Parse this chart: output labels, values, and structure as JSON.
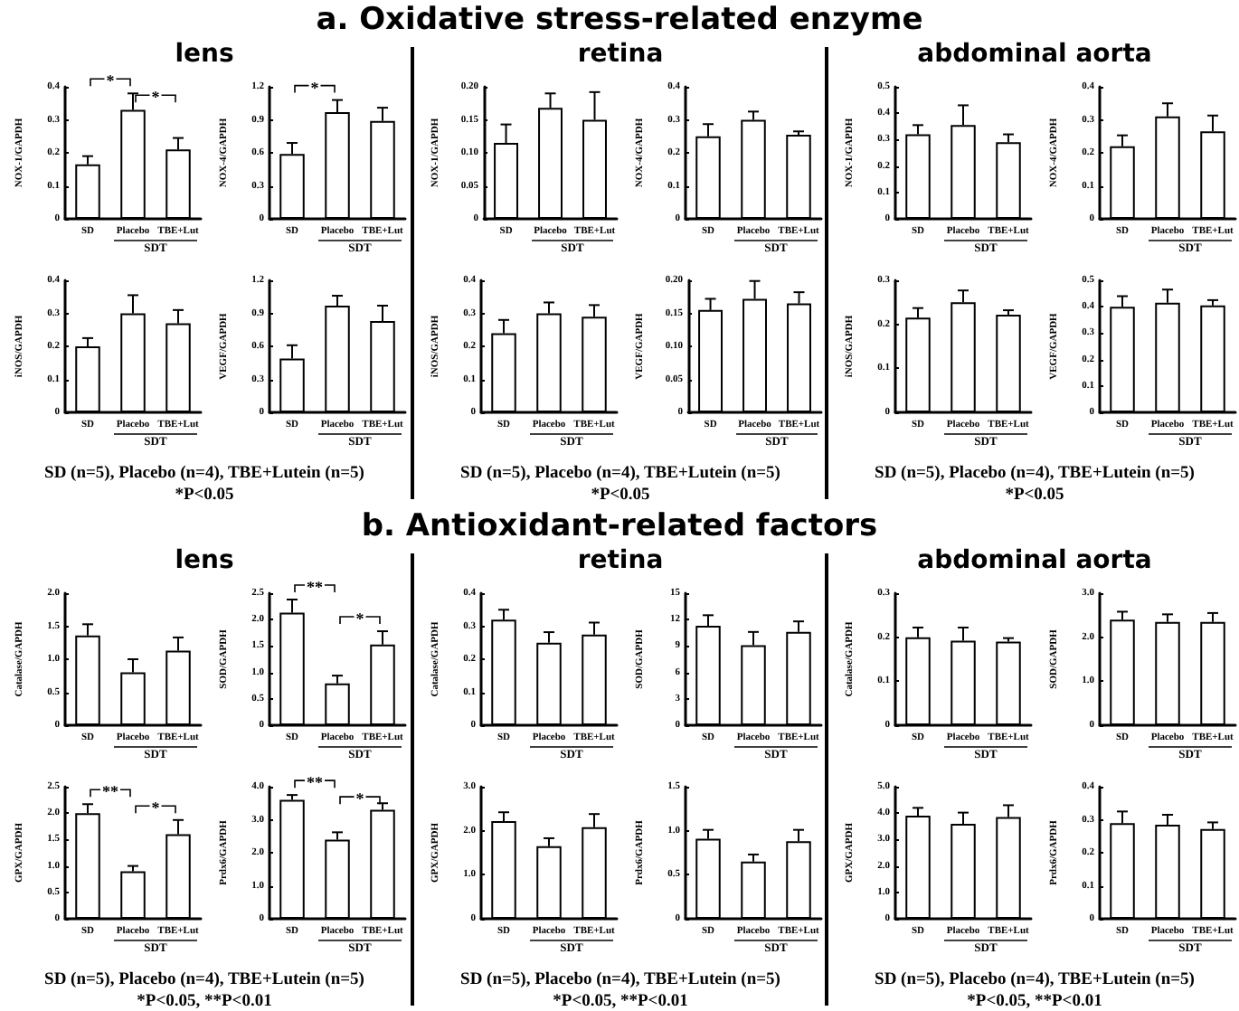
{
  "chart_data": [
    {
      "type": "other",
      "title": "a. Oxidative stress-related enzyme"
    },
    {
      "type": "other",
      "title": "lens",
      "annotations": [
        "SD (n=5), Placebo (n=4), TBE+Lutein (n=5)",
        "*P<0.05"
      ]
    },
    {
      "type": "bar",
      "ylabel": "NOX-1/GAPDH",
      "xlabel": "SDT",
      "categories": [
        "SD",
        "Placebo",
        "TBE+Lut"
      ],
      "values": [
        0.165,
        0.33,
        0.21
      ],
      "errors": [
        [
          0.165,
          0.19
        ],
        [
          0.33,
          0.38
        ],
        [
          0.21,
          0.245
        ]
      ],
      "color": "#ffffff",
      "ylim": [
        0,
        0.4
      ],
      "yticks": [
        0,
        0.1,
        0.2,
        0.3,
        0.4
      ],
      "annotations": [
        "*",
        "*"
      ]
    },
    {
      "type": "bar",
      "ylabel": "NOX-4/GAPDH",
      "xlabel": "SDT",
      "categories": [
        "SD",
        "Placebo",
        "TBE+Lut"
      ],
      "values": [
        0.59,
        0.97,
        0.89
      ],
      "errors": [
        [
          0.59,
          0.69
        ],
        [
          0.97,
          1.08
        ],
        [
          0.89,
          1.01
        ]
      ],
      "color": "#ffffff",
      "ylim": [
        0,
        1.2
      ],
      "yticks": [
        0,
        0.3,
        0.6,
        0.9,
        1.2
      ],
      "annotations": [
        "*"
      ]
    },
    {
      "type": "bar",
      "ylabel": "iNOS/GAPDH",
      "xlabel": "SDT",
      "categories": [
        "SD",
        "Placebo",
        "TBE+Lut"
      ],
      "values": [
        0.2,
        0.3,
        0.27
      ],
      "errors": [
        [
          0.2,
          0.225
        ],
        [
          0.3,
          0.355
        ],
        [
          0.27,
          0.31
        ]
      ],
      "color": "#ffffff",
      "ylim": [
        0,
        0.4
      ],
      "yticks": [
        0,
        0.1,
        0.2,
        0.3,
        0.4
      ]
    },
    {
      "type": "bar",
      "ylabel": "VEGF/GAPDH",
      "xlabel": "SDT",
      "categories": [
        "SD",
        "Placebo",
        "TBE+Lut"
      ],
      "values": [
        0.49,
        0.97,
        0.83
      ],
      "errors": [
        [
          0.49,
          0.61
        ],
        [
          0.97,
          1.06
        ],
        [
          0.83,
          0.97
        ]
      ],
      "color": "#ffffff",
      "ylim": [
        0,
        1.2
      ],
      "yticks": [
        0,
        0.3,
        0.6,
        0.9,
        1.2
      ]
    },
    {
      "type": "other",
      "title": "retina",
      "annotations": [
        "SD (n=5), Placebo (n=4), TBE+Lutein (n=5)",
        "*P<0.05"
      ]
    },
    {
      "type": "bar",
      "ylabel": "NOX-1/GAPDH",
      "xlabel": "SDT",
      "categories": [
        "SD",
        "Placebo",
        "TBE+Lut"
      ],
      "values": [
        0.115,
        0.168,
        0.15
      ],
      "errors": [
        [
          0.115,
          0.143
        ],
        [
          0.168,
          0.19
        ],
        [
          0.15,
          0.192
        ]
      ],
      "color": "#ffffff",
      "ylim": [
        0,
        0.2
      ],
      "yticks": [
        0,
        {
          "value": 0.05,
          "label": "0.05"
        },
        {
          "value": 0.1,
          "label": "0.10"
        },
        {
          "value": 0.15,
          "label": "0.15"
        },
        {
          "value": 0.2,
          "label": "0.20"
        }
      ]
    },
    {
      "type": "bar",
      "ylabel": "NOX-4/GAPDH",
      "xlabel": "SDT",
      "categories": [
        "SD",
        "Placebo",
        "TBE+Lut"
      ],
      "values": [
        0.25,
        0.3,
        0.255
      ],
      "errors": [
        [
          0.25,
          0.287
        ],
        [
          0.3,
          0.325
        ],
        [
          0.255,
          0.265
        ]
      ],
      "color": "#ffffff",
      "ylim": [
        0,
        0.4
      ],
      "yticks": [
        0,
        0.1,
        0.2,
        0.3,
        0.4
      ]
    },
    {
      "type": "bar",
      "ylabel": "iNOS/GAPDH",
      "xlabel": "SDT",
      "categories": [
        "SD",
        "Placebo",
        "TBE+Lut"
      ],
      "values": [
        0.24,
        0.3,
        0.29
      ],
      "errors": [
        [
          0.24,
          0.28
        ],
        [
          0.3,
          0.333
        ],
        [
          0.29,
          0.325
        ]
      ],
      "color": "#ffffff",
      "ylim": [
        0,
        0.4
      ],
      "yticks": [
        0,
        0.1,
        0.2,
        0.3,
        0.4
      ]
    },
    {
      "type": "bar",
      "ylabel": "VEGF/GAPDH",
      "xlabel": "SDT",
      "categories": [
        "SD",
        "Placebo",
        "TBE+Lut"
      ],
      "values": [
        0.155,
        0.172,
        0.165
      ],
      "errors": [
        [
          0.155,
          0.172
        ],
        [
          0.172,
          0.199
        ],
        [
          0.165,
          0.182
        ]
      ],
      "color": "#ffffff",
      "ylim": [
        0,
        0.2
      ],
      "yticks": [
        0,
        {
          "value": 0.05,
          "label": "0.05"
        },
        {
          "value": 0.1,
          "label": "0.10"
        },
        {
          "value": 0.15,
          "label": "0.15"
        },
        {
          "value": 0.2,
          "label": "0.20"
        }
      ]
    },
    {
      "type": "other",
      "title": "abdominal aorta",
      "annotations": [
        "SD (n=5), Placebo (n=4), TBE+Lutein (n=5)",
        "*P<0.05"
      ]
    },
    {
      "type": "bar",
      "ylabel": "NOX-1/GAPDH",
      "xlabel": "SDT",
      "categories": [
        "SD",
        "Placebo",
        "TBE+Lut"
      ],
      "values": [
        0.32,
        0.355,
        0.29
      ],
      "errors": [
        [
          0.32,
          0.355
        ],
        [
          0.355,
          0.43
        ],
        [
          0.29,
          0.32
        ]
      ],
      "color": "#ffffff",
      "ylim": [
        0,
        0.5
      ],
      "yticks": [
        0,
        0.1,
        0.2,
        0.3,
        0.4,
        0.5
      ]
    },
    {
      "type": "bar",
      "ylabel": "NOX-4/GAPDH",
      "xlabel": "SDT",
      "categories": [
        "SD",
        "Placebo",
        "TBE+Lut"
      ],
      "values": [
        0.22,
        0.31,
        0.265
      ],
      "errors": [
        [
          0.22,
          0.253
        ],
        [
          0.31,
          0.35
        ],
        [
          0.265,
          0.313
        ]
      ],
      "color": "#ffffff",
      "ylim": [
        0,
        0.4
      ],
      "yticks": [
        0,
        0.1,
        0.2,
        0.3,
        0.4
      ]
    },
    {
      "type": "bar",
      "ylabel": "iNOS/GAPDH",
      "xlabel": "SDT",
      "categories": [
        "SD",
        "Placebo",
        "TBE+Lut"
      ],
      "values": [
        0.215,
        0.25,
        0.222
      ],
      "errors": [
        [
          0.215,
          0.237
        ],
        [
          0.25,
          0.277
        ],
        [
          0.222,
          0.232
        ]
      ],
      "color": "#ffffff",
      "ylim": [
        0,
        0.3
      ],
      "yticks": [
        0,
        0.1,
        0.2,
        0.3
      ]
    },
    {
      "type": "bar",
      "ylabel": "VEGF/GAPDH",
      "xlabel": "SDT",
      "categories": [
        "SD",
        "Placebo",
        "TBE+Lut"
      ],
      "values": [
        0.4,
        0.415,
        0.405
      ],
      "errors": [
        [
          0.4,
          0.44
        ],
        [
          0.415,
          0.465
        ],
        [
          0.405,
          0.425
        ]
      ],
      "color": "#ffffff",
      "ylim": [
        0,
        0.5
      ],
      "yticks": [
        0,
        0.1,
        0.2,
        0.3,
        0.4,
        0.5
      ]
    },
    {
      "type": "other",
      "title": "b. Antioxidant-related factors"
    },
    {
      "type": "other",
      "title": "lens",
      "annotations": [
        "SD (n=5), Placebo (n=4), TBE+Lutein (n=5)",
        "*P<0.05, **P<0.01"
      ]
    },
    {
      "type": "bar",
      "ylabel": "Catalase/GAPDH",
      "xlabel": "SDT",
      "categories": [
        "SD",
        "Placebo",
        "TBE+Lut"
      ],
      "values": [
        1.36,
        0.8,
        1.13
      ],
      "errors": [
        [
          1.36,
          1.53
        ],
        [
          0.8,
          1.0
        ],
        [
          1.13,
          1.33
        ]
      ],
      "color": "#ffffff",
      "ylim": [
        0,
        2
      ],
      "yticks": [
        0,
        0.5,
        {
          "value": 1,
          "label": "1.0"
        },
        1.5,
        {
          "value": 2,
          "label": "2.0"
        }
      ]
    },
    {
      "type": "bar",
      "ylabel": "SOD/GAPDH",
      "xlabel": "SDT",
      "categories": [
        "SD",
        "Placebo",
        "TBE+Lut"
      ],
      "values": [
        2.13,
        0.79,
        1.53
      ],
      "errors": [
        [
          2.13,
          2.38
        ],
        [
          0.79,
          0.94
        ],
        [
          1.53,
          1.78
        ]
      ],
      "color": "#ffffff",
      "ylim": [
        0,
        2.5
      ],
      "yticks": [
        0,
        0.5,
        {
          "value": 1,
          "label": "1.0"
        },
        1.5,
        {
          "value": 2,
          "label": "2.0"
        },
        2.5
      ],
      "annotations": [
        "**",
        "*"
      ]
    },
    {
      "type": "bar",
      "ylabel": "GPX/GAPDH",
      "xlabel": "SDT",
      "categories": [
        "SD",
        "Placebo",
        "TBE+Lut"
      ],
      "values": [
        2.0,
        0.9,
        1.6
      ],
      "errors": [
        [
          2.0,
          2.17
        ],
        [
          0.9,
          1.0
        ],
        [
          1.6,
          1.87
        ]
      ],
      "color": "#ffffff",
      "ylim": [
        0,
        2.5
      ],
      "yticks": [
        0,
        0.5,
        {
          "value": 1,
          "label": "1.0"
        },
        1.5,
        {
          "value": 2,
          "label": "2.0"
        },
        2.5
      ],
      "annotations": [
        "**",
        "*"
      ]
    },
    {
      "type": "bar",
      "ylabel": "Prdx6/GAPDH",
      "xlabel": "SDT",
      "categories": [
        "SD",
        "Placebo",
        "TBE+Lut"
      ],
      "values": [
        3.6,
        2.4,
        3.3
      ],
      "errors": [
        [
          3.6,
          3.75
        ],
        [
          2.4,
          2.62
        ],
        [
          3.3,
          3.5
        ]
      ],
      "color": "#ffffff",
      "ylim": [
        0,
        4
      ],
      "yticks": [
        0,
        {
          "value": 1,
          "label": "1.0"
        },
        {
          "value": 2,
          "label": "2.0"
        },
        {
          "value": 3,
          "label": "3.0"
        },
        {
          "value": 4,
          "label": "4.0"
        }
      ],
      "annotations": [
        "**",
        "*"
      ]
    },
    {
      "type": "other",
      "title": "retina",
      "annotations": [
        "SD (n=5), Placebo (n=4), TBE+Lutein (n=5)",
        "*P<0.05, **P<0.01"
      ]
    },
    {
      "type": "bar",
      "ylabel": "Catalase/GAPDH",
      "xlabel": "SDT",
      "categories": [
        "SD",
        "Placebo",
        "TBE+Lut"
      ],
      "values": [
        0.32,
        0.25,
        0.275
      ],
      "errors": [
        [
          0.32,
          0.35
        ],
        [
          0.25,
          0.282
        ],
        [
          0.275,
          0.311
        ]
      ],
      "color": "#ffffff",
      "ylim": [
        0,
        0.4
      ],
      "yticks": [
        0,
        0.1,
        0.2,
        0.3,
        0.4
      ]
    },
    {
      "type": "bar",
      "ylabel": "SOD/GAPDH",
      "xlabel": "SDT",
      "categories": [
        "SD",
        "Placebo",
        "TBE+Lut"
      ],
      "values": [
        11.3,
        9.1,
        10.6
      ],
      "errors": [
        [
          11.3,
          12.5
        ],
        [
          9.1,
          10.6
        ],
        [
          10.6,
          11.8
        ]
      ],
      "color": "#ffffff",
      "ylim": [
        0,
        15
      ],
      "yticks": [
        0,
        3,
        6,
        9,
        12,
        15
      ]
    },
    {
      "type": "bar",
      "ylabel": "GPX/GAPDH",
      "xlabel": "SDT",
      "categories": [
        "SD",
        "Placebo",
        "TBE+Lut"
      ],
      "values": [
        2.22,
        1.65,
        2.08
      ],
      "errors": [
        [
          2.22,
          2.42
        ],
        [
          1.65,
          1.83
        ],
        [
          2.08,
          2.38
        ]
      ],
      "color": "#ffffff",
      "ylim": [
        0,
        3
      ],
      "yticks": [
        0,
        {
          "value": 1,
          "label": "1.0"
        },
        {
          "value": 2,
          "label": "2.0"
        },
        {
          "value": 3,
          "label": "3.0"
        }
      ]
    },
    {
      "type": "bar",
      "ylabel": "Prdx6/GAPDH",
      "xlabel": "SDT",
      "categories": [
        "SD",
        "Placebo",
        "TBE+Lut"
      ],
      "values": [
        0.91,
        0.65,
        0.88
      ],
      "errors": [
        [
          0.91,
          1.01
        ],
        [
          0.65,
          0.73
        ],
        [
          0.88,
          1.01
        ]
      ],
      "color": "#ffffff",
      "ylim": [
        0,
        1.5
      ],
      "yticks": [
        0,
        0.5,
        {
          "value": 1,
          "label": "1.0"
        },
        1.5
      ]
    },
    {
      "type": "other",
      "title": "abdominal aorta",
      "annotations": [
        "SD (n=5), Placebo (n=4), TBE+Lutein (n=5)",
        "*P<0.05, **P<0.01"
      ]
    },
    {
      "type": "bar",
      "ylabel": "Catalase/GAPDH",
      "xlabel": "SDT",
      "categories": [
        "SD",
        "Placebo",
        "TBE+Lut"
      ],
      "values": [
        0.2,
        0.192,
        0.19
      ],
      "errors": [
        [
          0.2,
          0.222
        ],
        [
          0.192,
          0.222
        ],
        [
          0.19,
          0.198
        ]
      ],
      "color": "#ffffff",
      "ylim": [
        0,
        0.3
      ],
      "yticks": [
        0,
        0.1,
        0.2,
        0.3
      ]
    },
    {
      "type": "bar",
      "ylabel": "SOD/GAPDH",
      "xlabel": "SDT",
      "categories": [
        "SD",
        "Placebo",
        "TBE+Lut"
      ],
      "values": [
        2.4,
        2.35,
        2.35
      ],
      "errors": [
        [
          2.4,
          2.58
        ],
        [
          2.35,
          2.52
        ],
        [
          2.35,
          2.55
        ]
      ],
      "color": "#ffffff",
      "ylim": [
        0,
        3
      ],
      "yticks": [
        0,
        {
          "value": 1,
          "label": "1.0"
        },
        {
          "value": 2,
          "label": "2.0"
        },
        {
          "value": 3,
          "label": "3.0"
        }
      ]
    },
    {
      "type": "bar",
      "ylabel": "GPX/GAPDH",
      "xlabel": "SDT",
      "categories": [
        "SD",
        "Placebo",
        "TBE+Lut"
      ],
      "values": [
        3.9,
        3.6,
        3.85
      ],
      "errors": [
        [
          3.9,
          4.2
        ],
        [
          3.6,
          4.02
        ],
        [
          3.85,
          4.3
        ]
      ],
      "color": "#ffffff",
      "ylim": [
        0,
        5
      ],
      "yticks": [
        0,
        {
          "value": 1,
          "label": "1.0"
        },
        {
          "value": 2,
          "label": "2.0"
        },
        {
          "value": 3,
          "label": "3.0"
        },
        {
          "value": 4,
          "label": "4.0"
        },
        {
          "value": 5,
          "label": "5.0"
        }
      ]
    },
    {
      "type": "bar",
      "ylabel": "Prdx6/GAPDH",
      "xlabel": "SDT",
      "categories": [
        "SD",
        "Placebo",
        "TBE+Lut"
      ],
      "values": [
        0.29,
        0.285,
        0.272
      ],
      "errors": [
        [
          0.29,
          0.325
        ],
        [
          0.285,
          0.315
        ],
        [
          0.272,
          0.292
        ]
      ],
      "color": "#ffffff",
      "ylim": [
        0,
        0.4
      ],
      "yticks": [
        0,
        0.1,
        0.2,
        0.3,
        0.4
      ]
    }
  ]
}
